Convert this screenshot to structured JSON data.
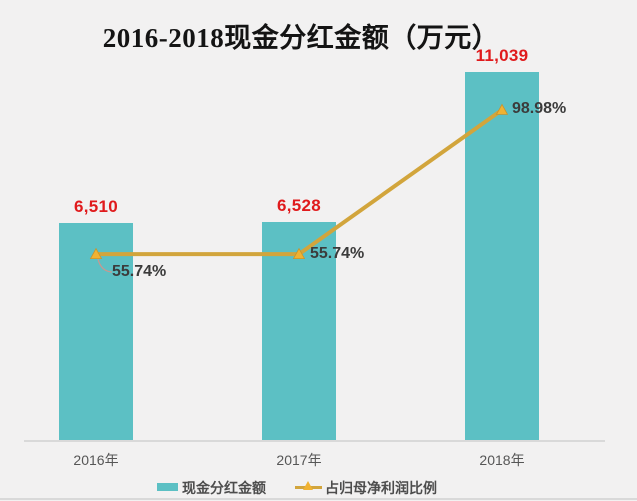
{
  "title": "2016-2018现金分红金额（万元）",
  "colors": {
    "background": "#f2f1f1",
    "bar": "#5cc0c4",
    "line": "#d2a53c",
    "marker_fill": "#f0b232",
    "marker_stroke": "#c9932a",
    "value_label": "#e01a1c",
    "pct_label": "#3b3b3b",
    "axis_label": "#565656",
    "axis_line": "#d9d9d9",
    "title_color": "#141414",
    "legend_text": "#4d4d4d",
    "leader_line": "#c89890"
  },
  "legend": [
    {
      "label": "现金分红金额",
      "marker": "bar-swatch"
    },
    {
      "label": "占归母净利润比例",
      "marker": "line-triangle"
    }
  ],
  "chart_data": {
    "type": "bar",
    "subtype": "bar+line combo",
    "title": "2016-2018现金分红金额（万元）",
    "xlabel": "",
    "ylabel": "",
    "unit": "万元",
    "categories": [
      "2016年",
      "2017年",
      "2018年"
    ],
    "series": [
      {
        "name": "现金分红金额",
        "type": "bar",
        "values": [
          6510,
          6528,
          11039
        ],
        "labels": [
          "6,510",
          "6,528",
          "11,039"
        ]
      },
      {
        "name": "占归母净利润比例",
        "type": "line",
        "values": [
          55.74,
          55.74,
          98.98
        ],
        "labels": [
          "55.74%",
          "55.74%",
          "98.98%"
        ]
      }
    ],
    "value_axis_visible": false,
    "grid": false,
    "legend_position": "bottom"
  }
}
